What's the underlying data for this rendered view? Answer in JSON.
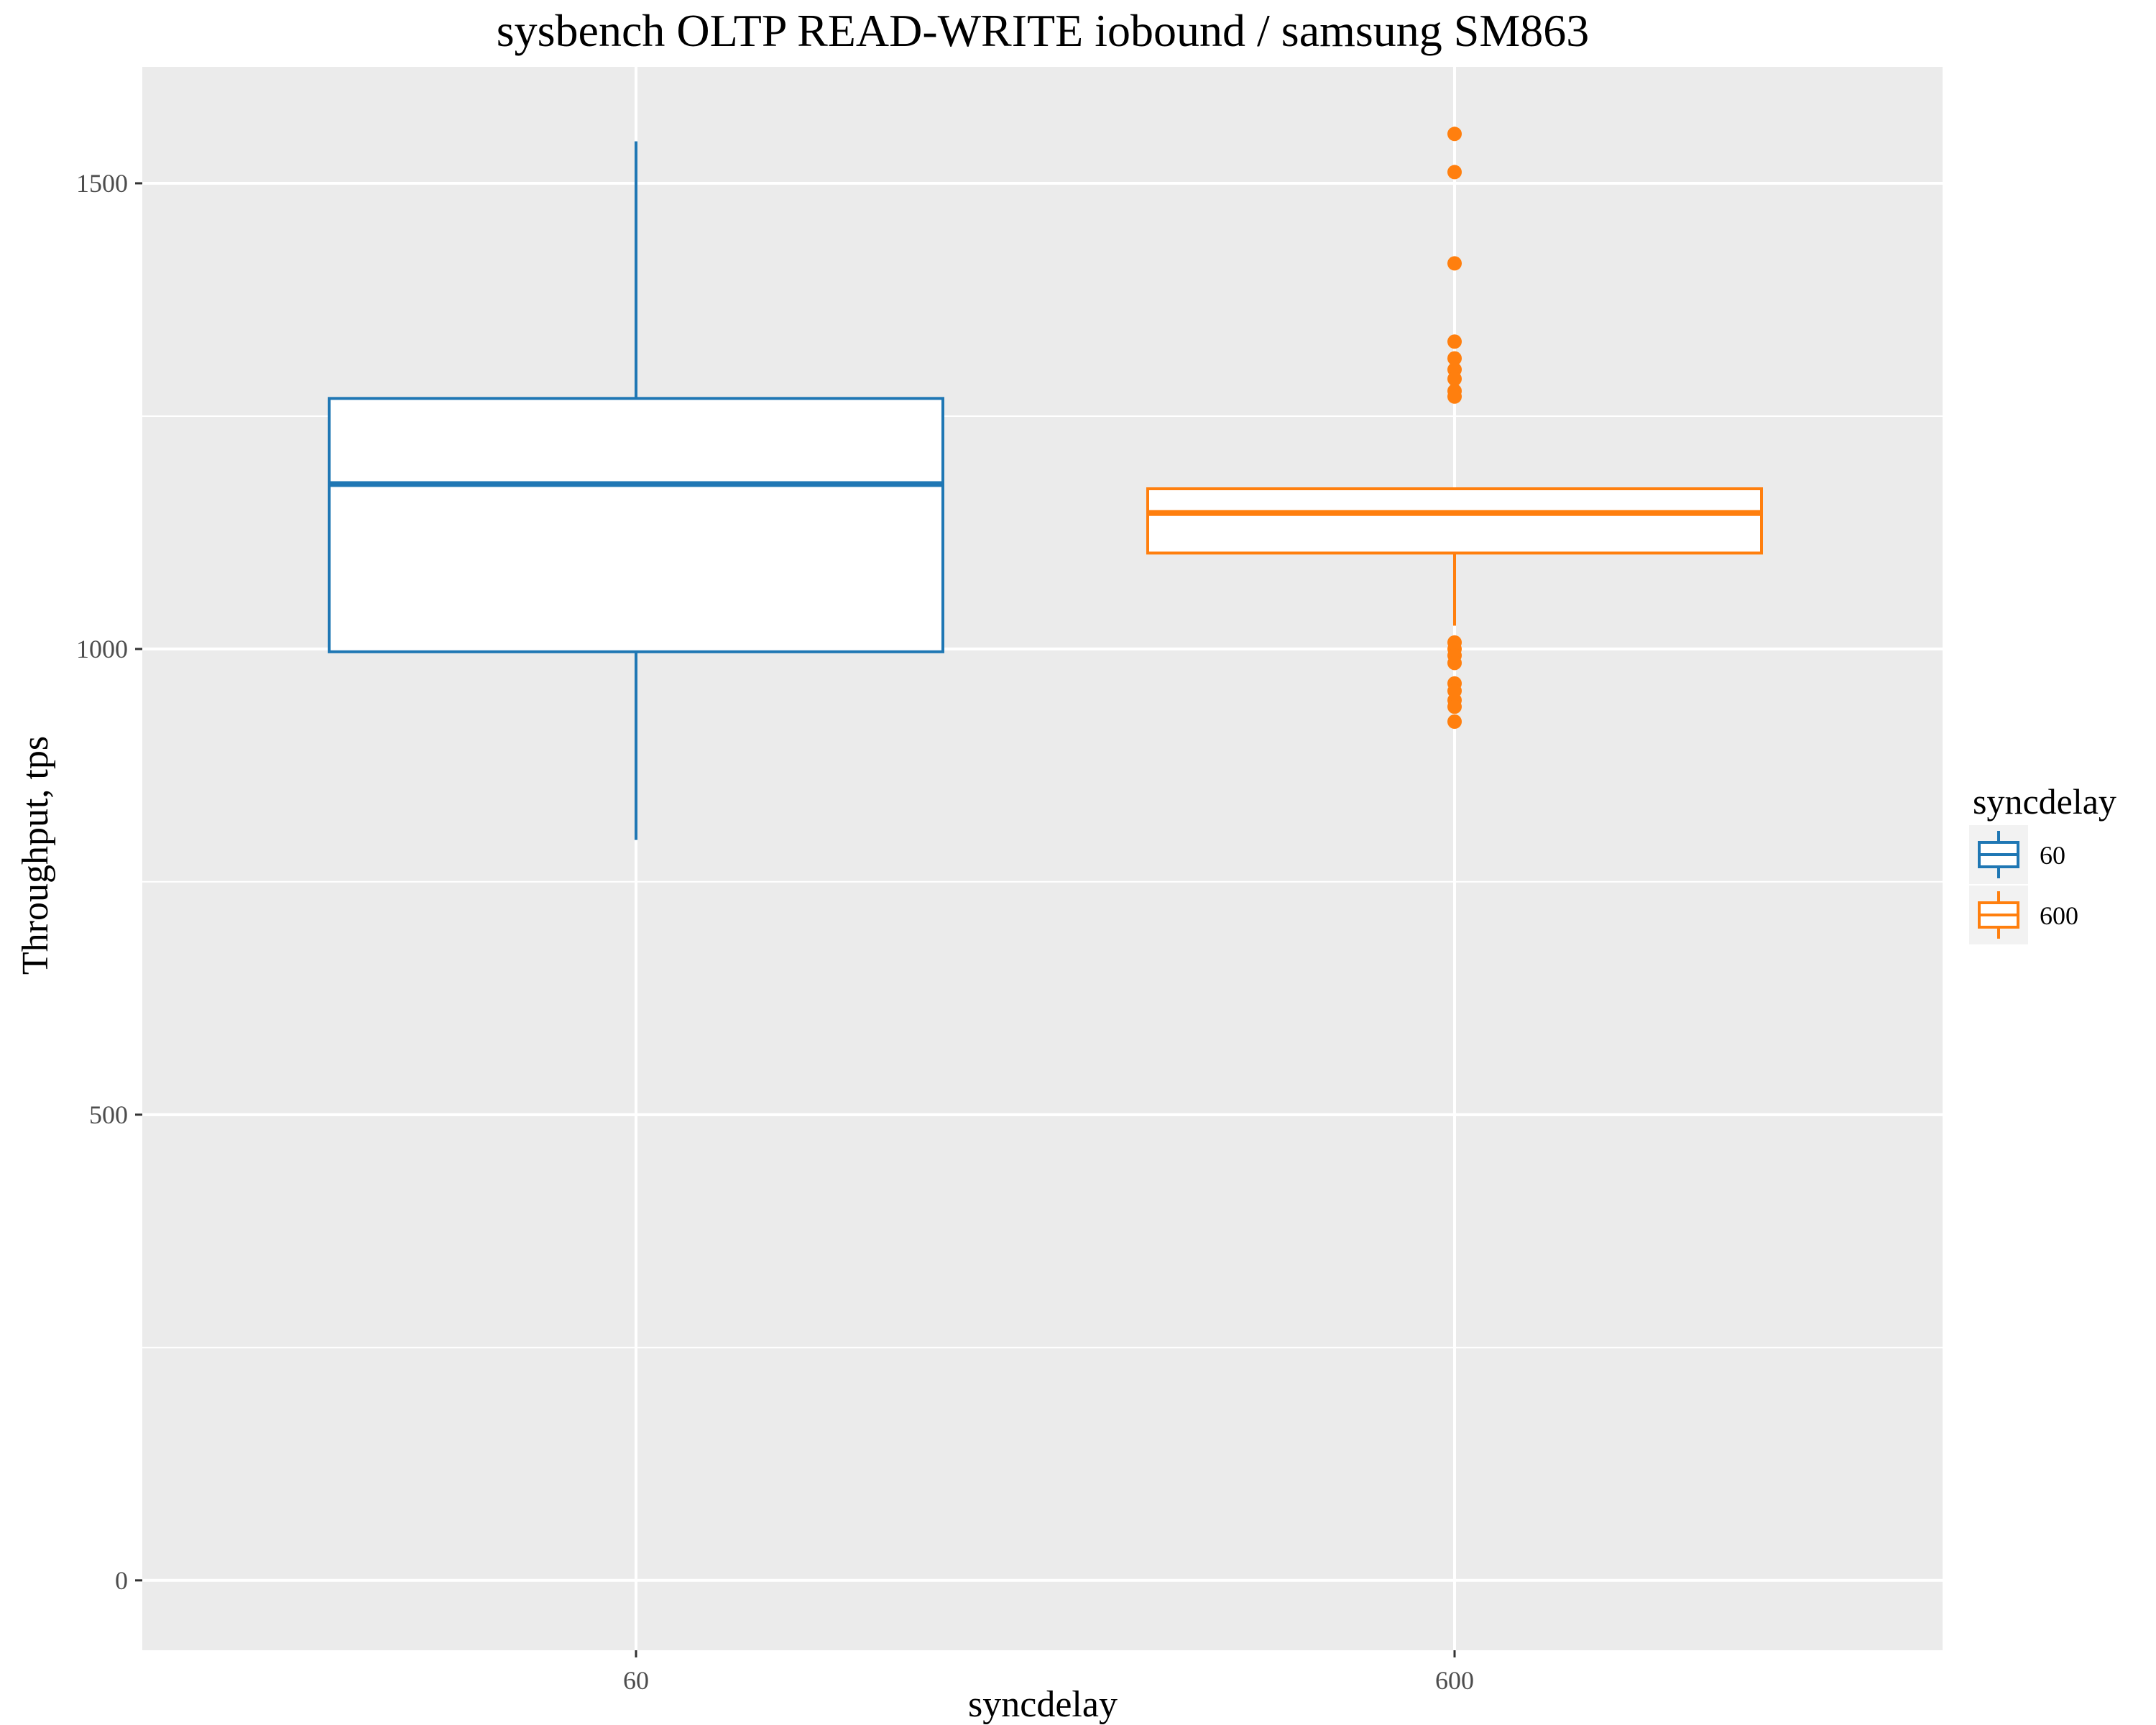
{
  "colors": {
    "panel_background": "#ebebeb",
    "grid": "#ffffff",
    "series_60": "#1f77b4",
    "series_600": "#ff7f0e",
    "tick_text": "#4d4d4d"
  },
  "chart_data": {
    "type": "boxplot",
    "title": "sysbench OLTP READ-WRITE iobound / samsung SM863",
    "xlabel": "syncdelay",
    "ylabel": "Throughput, tps",
    "categories": [
      "60",
      "600"
    ],
    "y_ticks": [
      0,
      500,
      1000,
      1500
    ],
    "y_tick_labels": [
      "0",
      "500",
      "1000",
      "1500"
    ],
    "ylim": [
      -75,
      1625
    ],
    "grid": true,
    "legend": {
      "title": "syncdelay",
      "position": "right",
      "items": [
        "60",
        "600"
      ]
    },
    "series": [
      {
        "name": "60",
        "color": "#1f77b4",
        "whisker_low": 795,
        "q1": 997,
        "median": 1177,
        "q3": 1269,
        "whisker_high": 1545,
        "outliers": []
      },
      {
        "name": "600",
        "color": "#ff7f0e",
        "whisker_low": 1025,
        "q1": 1103,
        "median": 1146,
        "q3": 1172,
        "whisker_high": 1172,
        "outliers": [
          1553,
          1512,
          1414,
          1330,
          1312,
          1300,
          1290,
          1277,
          1271,
          1007,
          1000,
          993,
          985,
          963,
          955,
          945,
          938,
          922
        ]
      }
    ]
  }
}
